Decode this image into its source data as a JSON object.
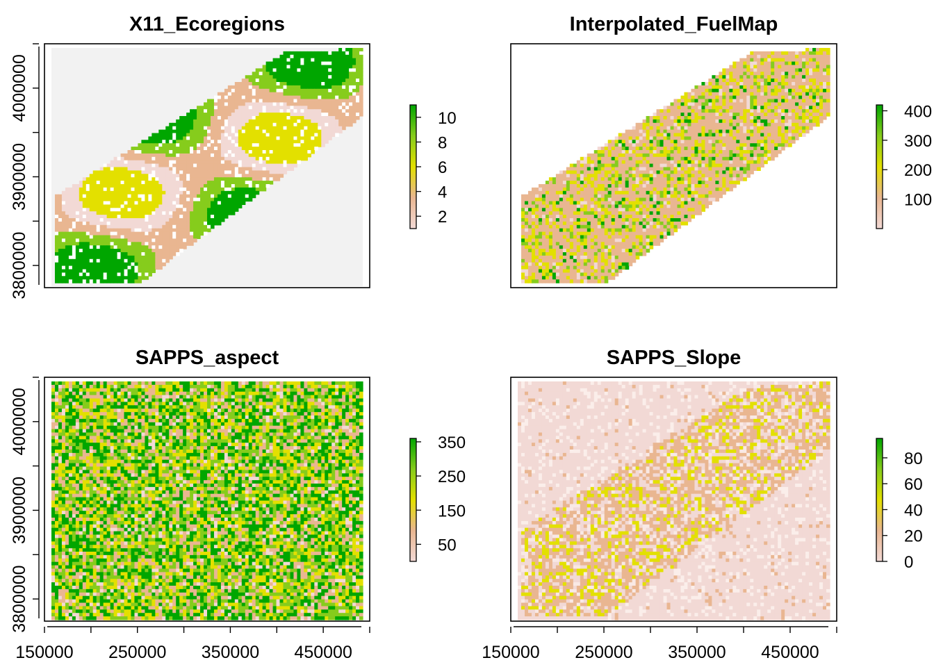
{
  "chart_data": [
    {
      "type": "heatmap",
      "title": "X11_Ecoregions",
      "xlim": [
        150000,
        500000
      ],
      "ylim": [
        3775000,
        4050000
      ],
      "x_ticks": [],
      "y_ticks": [
        "3800000",
        "3900000",
        "4000000"
      ],
      "grid": false,
      "legend": {
        "placement": "right",
        "ticks": [
          "2",
          "4",
          "6",
          "8",
          "10"
        ],
        "range": [
          1,
          11
        ]
      },
      "pattern": "ecoregions",
      "colors": {
        "low": "#f2d9d5",
        "mid_low": "#e9b691",
        "mid": "#e3e000",
        "mid_high": "#86cc1c",
        "high": "#00a600",
        "background": "#f2f2f2"
      }
    },
    {
      "type": "heatmap",
      "title": "Interpolated_FuelMap",
      "xlim": [
        150000,
        500000
      ],
      "ylim": [
        3775000,
        4050000
      ],
      "x_ticks": [],
      "y_ticks": [],
      "grid": false,
      "legend": {
        "placement": "right",
        "ticks": [
          "100",
          "200",
          "300",
          "400"
        ],
        "range": [
          0,
          420
        ]
      },
      "pattern": "fuel",
      "colors": {
        "low": "#f2d9d5",
        "mid_low": "#e9b691",
        "mid": "#e3e000",
        "mid_high": "#86cc1c",
        "high": "#00a600"
      }
    },
    {
      "type": "heatmap",
      "title": "SAPPS_aspect",
      "xlim": [
        150000,
        500000
      ],
      "ylim": [
        3775000,
        4050000
      ],
      "x_ticks": [
        "150000",
        "250000",
        "350000",
        "450000"
      ],
      "y_ticks": [
        "3800000",
        "3900000",
        "4000000"
      ],
      "grid": false,
      "legend": {
        "placement": "right",
        "ticks": [
          "50",
          "150",
          "250",
          "350"
        ],
        "range": [
          0,
          360
        ]
      },
      "pattern": "aspect",
      "colors": {
        "low": "#f2d9d5",
        "mid_low": "#e9b691",
        "mid": "#e3e000",
        "mid_high": "#86cc1c",
        "high": "#00a600"
      }
    },
    {
      "type": "heatmap",
      "title": "SAPPS_Slope",
      "xlim": [
        150000,
        500000
      ],
      "ylim": [
        3775000,
        4050000
      ],
      "x_ticks": [
        "150000",
        "250000",
        "350000",
        "450000"
      ],
      "y_ticks": [],
      "grid": false,
      "legend": {
        "placement": "right",
        "ticks": [
          "0",
          "20",
          "40",
          "60",
          "80"
        ],
        "range": [
          0,
          95
        ]
      },
      "pattern": "slope",
      "colors": {
        "low": "#f2d9d5",
        "mid_low": "#e9b691",
        "mid": "#e3e000",
        "mid_high": "#86cc1c",
        "high": "#00a600"
      }
    }
  ]
}
